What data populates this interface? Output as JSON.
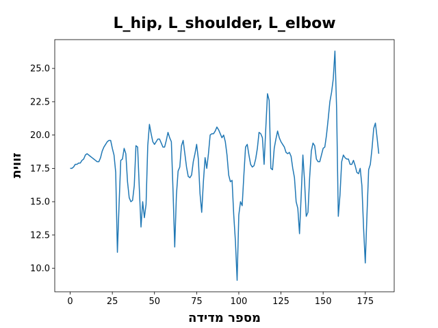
{
  "chart_data": {
    "type": "line",
    "title": "L_hip, L_shoulder, L_elbow",
    "x_label": "מספר מדידה",
    "y_label": "זווית",
    "xlim": [
      -9.15,
      192.15
    ],
    "xticks": [
      0,
      25,
      50,
      75,
      100,
      125,
      150,
      175
    ],
    "ylim": [
      8.24,
      27.16
    ],
    "yticks": [
      {
        "value": 10,
        "label": "10.0"
      },
      {
        "value": 12.5,
        "label": "12.5"
      },
      {
        "value": 15,
        "label": "15.0"
      },
      {
        "value": 17.5,
        "label": "17.5"
      },
      {
        "value": 20,
        "label": "20.0"
      },
      {
        "value": 22.5,
        "label": "22.5"
      },
      {
        "value": 25,
        "label": "25.0"
      }
    ],
    "grid": false,
    "series": [
      {
        "color": "#1f77b4",
        "values": [
          17.5,
          17.5,
          17.6,
          17.8,
          17.8,
          17.9,
          17.9,
          18.1,
          18.2,
          18.5,
          18.6,
          18.5,
          18.4,
          18.3,
          18.2,
          18.1,
          18.0,
          18.0,
          18.3,
          18.8,
          19.1,
          19.3,
          19.5,
          19.6,
          19.6,
          19.0,
          18.5,
          17.2,
          11.2,
          14.8,
          18.1,
          18.2,
          19.0,
          18.6,
          16.5,
          15.3,
          15.0,
          15.1,
          16.2,
          19.2,
          19.1,
          16.0,
          13.1,
          15.0,
          13.8,
          14.8,
          19.2,
          20.8,
          20.1,
          19.5,
          19.3,
          19.5,
          19.7,
          19.7,
          19.4,
          19.1,
          19.1,
          19.6,
          20.2,
          19.8,
          19.5,
          15.8,
          11.6,
          15.5,
          17.3,
          17.6,
          19.2,
          19.6,
          18.6,
          17.6,
          16.9,
          16.8,
          17.0,
          18.0,
          18.6,
          19.3,
          18.2,
          15.6,
          14.2,
          16.5,
          18.3,
          17.5,
          18.6,
          20.0,
          20.1,
          20.1,
          20.3,
          20.6,
          20.4,
          20.1,
          19.8,
          20.0,
          19.5,
          18.5,
          17.0,
          16.5,
          16.6,
          14.0,
          12.0,
          9.1,
          14.0,
          15.0,
          14.7,
          17.0,
          19.1,
          19.3,
          18.5,
          17.8,
          17.6,
          17.7,
          18.2,
          19.0,
          20.2,
          20.1,
          19.8,
          17.8,
          20.5,
          23.1,
          22.6,
          17.5,
          17.4,
          19.0,
          19.7,
          20.3,
          19.8,
          19.5,
          19.3,
          19.1,
          18.7,
          18.6,
          18.7,
          18.4,
          17.5,
          16.8,
          15.0,
          14.5,
          12.6,
          15.5,
          18.5,
          16.5,
          13.9,
          14.2,
          16.8,
          18.8,
          19.4,
          19.2,
          18.2,
          18.0,
          18.0,
          18.5,
          19.0,
          19.1,
          20.0,
          21.2,
          22.5,
          23.2,
          24.2,
          26.3,
          22.0,
          13.9,
          15.5,
          18.0,
          18.5,
          18.3,
          18.2,
          18.2,
          17.8,
          17.8,
          18.1,
          17.7,
          17.2,
          17.1,
          17.5,
          16.2,
          13.0,
          10.4,
          14.0,
          17.4,
          17.8,
          19.0,
          20.5,
          20.9,
          19.8,
          18.6
        ]
      }
    ]
  }
}
